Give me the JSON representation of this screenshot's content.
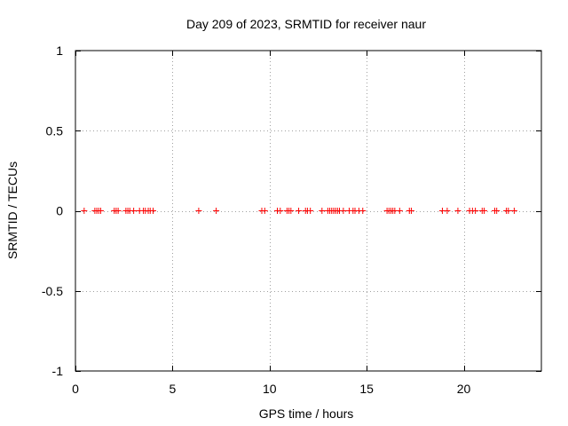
{
  "chart_data": {
    "type": "scatter",
    "title": "Day 209 of 2023, SRMTID for receiver naur",
    "xlabel": "GPS time / hours",
    "ylabel": "SRMTID / TECUs",
    "xlim": [
      0,
      24
    ],
    "ylim": [
      -1,
      1
    ],
    "xticks": [
      0,
      5,
      10,
      15,
      20
    ],
    "xtick_labels": [
      "0",
      "5",
      "10",
      "15",
      "20"
    ],
    "yticks": [
      -1,
      -0.5,
      0,
      0.5,
      1
    ],
    "ytick_labels": [
      "-1",
      "-0.5",
      "0",
      "0.5",
      "1"
    ],
    "grid": true,
    "marker": "+",
    "series": [
      {
        "name": "SRMTID",
        "color": "#ff0000",
        "x": [
          0.45,
          1.0,
          1.1,
          1.2,
          1.3,
          2.0,
          2.1,
          2.2,
          2.6,
          2.7,
          2.8,
          3.0,
          3.3,
          3.5,
          3.6,
          3.75,
          3.85,
          4.0,
          6.35,
          7.25,
          9.6,
          9.75,
          10.4,
          10.55,
          10.9,
          11.0,
          11.1,
          11.5,
          11.85,
          11.95,
          12.1,
          12.7,
          13.0,
          13.1,
          13.2,
          13.3,
          13.4,
          13.5,
          13.6,
          13.8,
          14.1,
          14.3,
          14.4,
          14.6,
          14.8,
          16.05,
          16.15,
          16.25,
          16.35,
          16.45,
          16.7,
          17.2,
          17.3,
          18.9,
          19.15,
          19.7,
          20.3,
          20.45,
          20.6,
          20.95,
          21.05,
          21.6,
          21.7,
          22.2,
          22.3,
          22.6
        ],
        "y": [
          0,
          0,
          0,
          0,
          0,
          0,
          0,
          0,
          0,
          0,
          0,
          0,
          0,
          0,
          0,
          0,
          0,
          0,
          0,
          0,
          0,
          0,
          0,
          0,
          0,
          0,
          0,
          0,
          0,
          0,
          0,
          0,
          0,
          0,
          0,
          0,
          0,
          0,
          0,
          0,
          0,
          0,
          0,
          0,
          0,
          0,
          0,
          0,
          0,
          0,
          0,
          0,
          0,
          0,
          0,
          0,
          0,
          0,
          0,
          0,
          0,
          0,
          0,
          0,
          0,
          0
        ]
      }
    ]
  }
}
